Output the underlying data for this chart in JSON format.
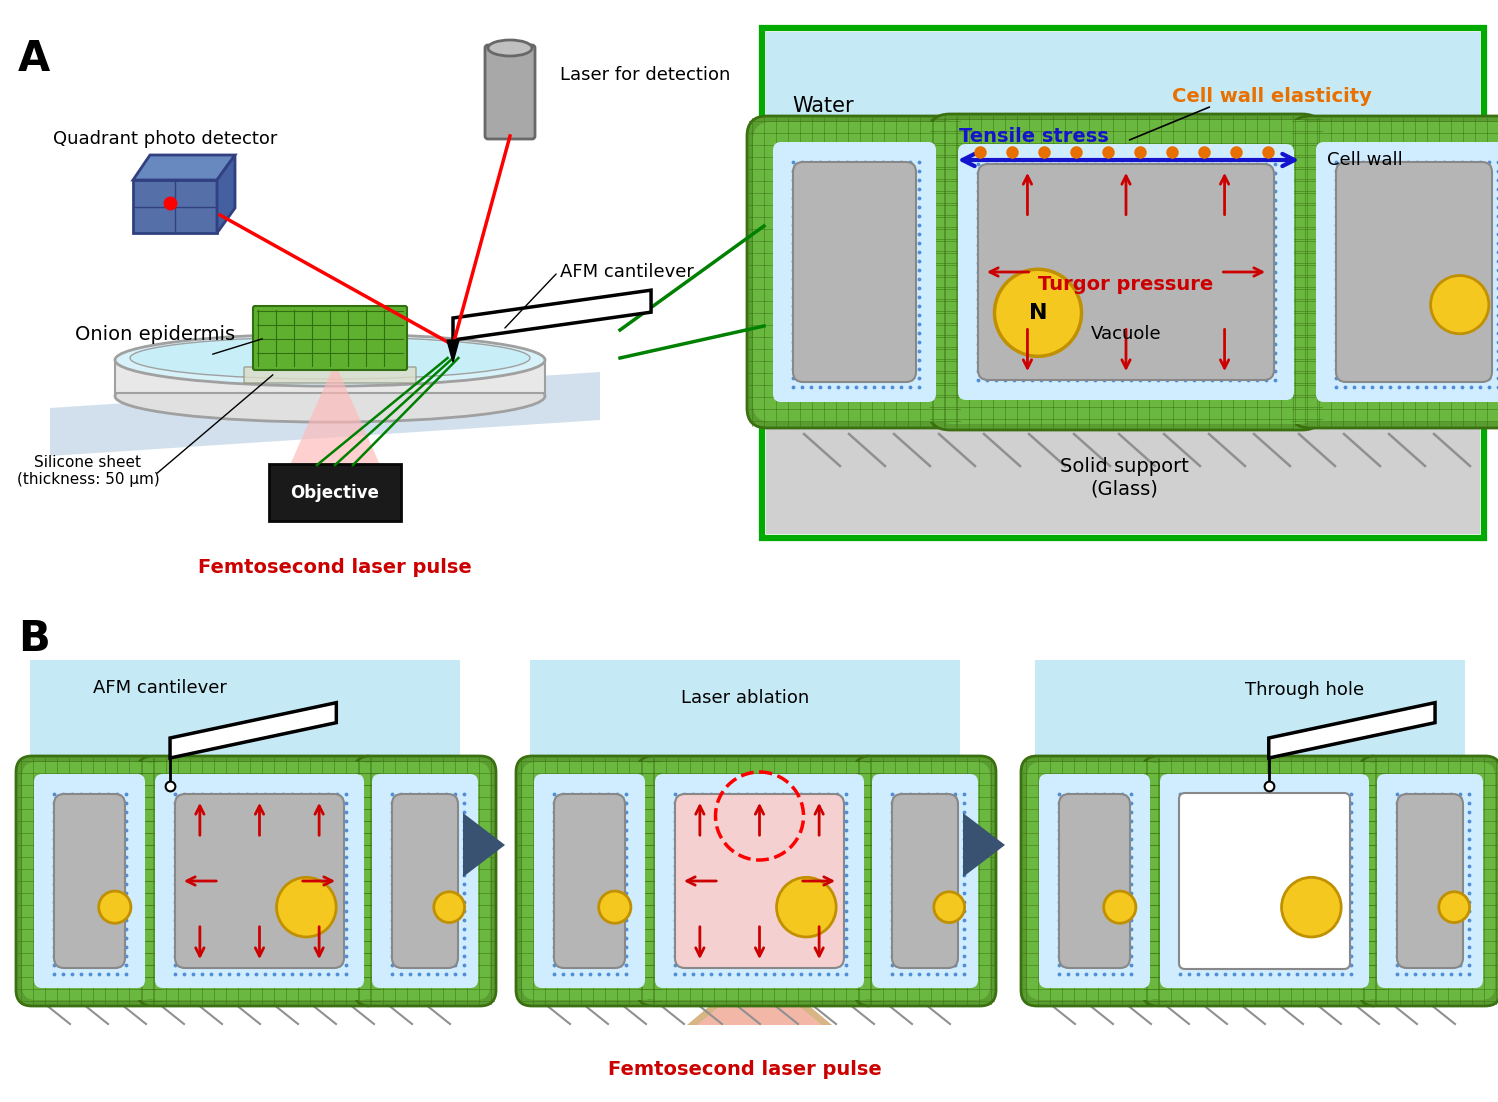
{
  "panel_A_label": "A",
  "panel_B_label": "B",
  "labels": {
    "quadrant_photo_detector": "Quadrant photo detector",
    "laser_detection": "Laser for detection",
    "afm_cantilever": "AFM cantilever",
    "onion_epidermis": "Onion epidermis",
    "objective": "Objective",
    "silicone_sheet": "Silicone sheet\n(thickness: 50 μm)",
    "femtosecond_A": "Femtosecond laser pulse",
    "water": "Water",
    "cell_wall_elasticity": "Cell wall elasticity",
    "tensile_stress": "Tensile stress",
    "cell_wall": "Cell wall",
    "turgor_pressure": "Turgor pressure",
    "vacuole": "Vacuole",
    "nucleus": "N",
    "solid_support": "Solid support\n(Glass)",
    "afm_cantilever_B": "AFM cantilever",
    "laser_ablation": "Laser ablation",
    "through_hole": "Through hole",
    "femtosecond_B": "Femtosecond laser pulse"
  },
  "colors": {
    "background": "#ffffff",
    "water_bg": "#c5eaf5",
    "cell_wall_outer": "#5a9e32",
    "cell_wall_inner": "#6ab840",
    "cell_wall_hatch": "#3a7010",
    "cell_interior_blue": "#d0ecff",
    "vacuole_gray": "#b5b5b5",
    "vacuole_border": "#888888",
    "nucleus_yellow": "#f5c820",
    "nucleus_border": "#c09000",
    "glass_gray": "#c8c8c8",
    "glass_line": "#909090",
    "arrow_red": "#cc0000",
    "arrow_blue": "#1414cc",
    "arrow_orange": "#e87000",
    "text_orange": "#e87000",
    "text_blue": "#1414cc",
    "text_red": "#cc0000",
    "green_border": "#00aa00",
    "laser_gray": "#909090",
    "petri_edge": "#a0a0a0",
    "blue_plane": "#aabbd8",
    "red_laser": "#ffb8b8",
    "dark_arrow": "#3a5272",
    "ablation_brown": "#b87820",
    "detector_blue": "#5570a8"
  }
}
